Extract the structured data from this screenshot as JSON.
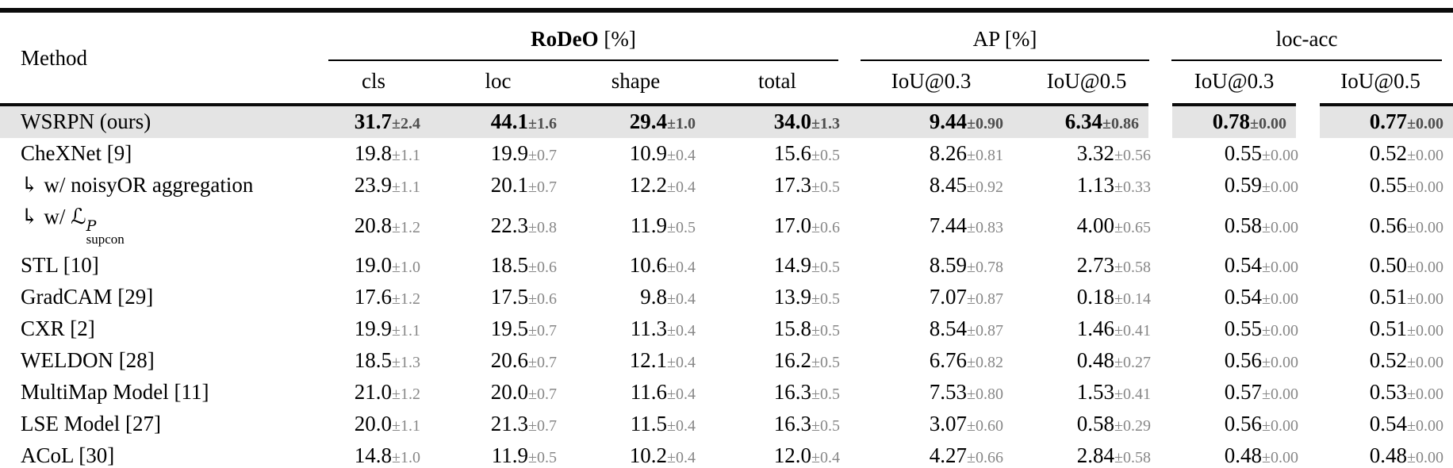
{
  "table": {
    "method_header": "Method",
    "groups": [
      {
        "label_bold": "RoDeO",
        "label_rest": " [%]"
      },
      {
        "label_bold": "",
        "label_rest": "AP [%]"
      },
      {
        "label_bold": "",
        "label_rest": "loc-acc"
      }
    ],
    "subheaders": [
      "cls",
      "loc",
      "shape",
      "total",
      "IoU@0.3",
      "IoU@0.5",
      "IoU@0.3",
      "IoU@0.5"
    ],
    "rows": [
      {
        "method": "WSRPN (ours)",
        "highlight": true,
        "values": [
          {
            "v": "31.7",
            "e": "±2.4"
          },
          {
            "v": "44.1",
            "e": "±1.6"
          },
          {
            "v": "29.4",
            "e": "±1.0"
          },
          {
            "v": "34.0",
            "e": "±1.3"
          },
          {
            "v": "9.44",
            "e": "±0.90"
          },
          {
            "v": "6.34",
            "e": "±0.86"
          },
          {
            "v": "0.78",
            "e": "±0.00"
          },
          {
            "v": "0.77",
            "e": "±0.00"
          }
        ]
      },
      {
        "method": "CheXNet [9]",
        "highlight": false,
        "values": [
          {
            "v": "19.8",
            "e": "±1.1"
          },
          {
            "v": "19.9",
            "e": "±0.7"
          },
          {
            "v": "10.9",
            "e": "±0.4"
          },
          {
            "v": "15.6",
            "e": "±0.5"
          },
          {
            "v": "8.26",
            "e": "±0.81"
          },
          {
            "v": "3.32",
            "e": "±0.56"
          },
          {
            "v": "0.55",
            "e": "±0.00"
          },
          {
            "v": "0.52",
            "e": "±0.00"
          }
        ]
      },
      {
        "method": "↳ w/ noisyOR aggregation",
        "highlight": false,
        "values": [
          {
            "v": "23.9",
            "e": "±1.1"
          },
          {
            "v": "20.1",
            "e": "±0.7"
          },
          {
            "v": "12.2",
            "e": "±0.4"
          },
          {
            "v": "17.3",
            "e": "±0.5"
          },
          {
            "v": "8.45",
            "e": "±0.92"
          },
          {
            "v": "1.13",
            "e": "±0.33"
          },
          {
            "v": "0.59",
            "e": "±0.00"
          },
          {
            "v": "0.55",
            "e": "±0.00"
          }
        ]
      },
      {
        "method": "↳ w/ ℒ^P_supcon",
        "method_math": {
          "prefix": "↳ w/ ",
          "symbol": "ℒ",
          "sup": "P",
          "sub": "supcon"
        },
        "highlight": false,
        "values": [
          {
            "v": "20.8",
            "e": "±1.2"
          },
          {
            "v": "22.3",
            "e": "±0.8"
          },
          {
            "v": "11.9",
            "e": "±0.5"
          },
          {
            "v": "17.0",
            "e": "±0.6"
          },
          {
            "v": "7.44",
            "e": "±0.83"
          },
          {
            "v": "4.00",
            "e": "±0.65"
          },
          {
            "v": "0.58",
            "e": "±0.00"
          },
          {
            "v": "0.56",
            "e": "±0.00"
          }
        ]
      },
      {
        "method": "STL [10]",
        "highlight": false,
        "values": [
          {
            "v": "19.0",
            "e": "±1.0"
          },
          {
            "v": "18.5",
            "e": "±0.6"
          },
          {
            "v": "10.6",
            "e": "±0.4"
          },
          {
            "v": "14.9",
            "e": "±0.5"
          },
          {
            "v": "8.59",
            "e": "±0.78"
          },
          {
            "v": "2.73",
            "e": "±0.58"
          },
          {
            "v": "0.54",
            "e": "±0.00"
          },
          {
            "v": "0.50",
            "e": "±0.00"
          }
        ]
      },
      {
        "method": "GradCAM [29]",
        "highlight": false,
        "values": [
          {
            "v": "17.6",
            "e": "±1.2"
          },
          {
            "v": "17.5",
            "e": "±0.6"
          },
          {
            "v": "9.8",
            "e": "±0.4"
          },
          {
            "v": "13.9",
            "e": "±0.5"
          },
          {
            "v": "7.07",
            "e": "±0.87"
          },
          {
            "v": "0.18",
            "e": "±0.14"
          },
          {
            "v": "0.54",
            "e": "±0.00"
          },
          {
            "v": "0.51",
            "e": "±0.00"
          }
        ]
      },
      {
        "method": "CXR [2]",
        "highlight": false,
        "values": [
          {
            "v": "19.9",
            "e": "±1.1"
          },
          {
            "v": "19.5",
            "e": "±0.7"
          },
          {
            "v": "11.3",
            "e": "±0.4"
          },
          {
            "v": "15.8",
            "e": "±0.5"
          },
          {
            "v": "8.54",
            "e": "±0.87"
          },
          {
            "v": "1.46",
            "e": "±0.41"
          },
          {
            "v": "0.55",
            "e": "±0.00"
          },
          {
            "v": "0.51",
            "e": "±0.00"
          }
        ]
      },
      {
        "method": "WELDON [28]",
        "highlight": false,
        "values": [
          {
            "v": "18.5",
            "e": "±1.3"
          },
          {
            "v": "20.6",
            "e": "±0.7"
          },
          {
            "v": "12.1",
            "e": "±0.4"
          },
          {
            "v": "16.2",
            "e": "±0.5"
          },
          {
            "v": "6.76",
            "e": "±0.82"
          },
          {
            "v": "0.48",
            "e": "±0.27"
          },
          {
            "v": "0.56",
            "e": "±0.00"
          },
          {
            "v": "0.52",
            "e": "±0.00"
          }
        ]
      },
      {
        "method": "MultiMap Model [11]",
        "highlight": false,
        "values": [
          {
            "v": "21.0",
            "e": "±1.2"
          },
          {
            "v": "20.0",
            "e": "±0.7"
          },
          {
            "v": "11.6",
            "e": "±0.4"
          },
          {
            "v": "16.3",
            "e": "±0.5"
          },
          {
            "v": "7.53",
            "e": "±0.80"
          },
          {
            "v": "1.53",
            "e": "±0.41"
          },
          {
            "v": "0.57",
            "e": "±0.00"
          },
          {
            "v": "0.53",
            "e": "±0.00"
          }
        ]
      },
      {
        "method": "LSE Model [27]",
        "highlight": false,
        "values": [
          {
            "v": "20.0",
            "e": "±1.1"
          },
          {
            "v": "21.3",
            "e": "±0.7"
          },
          {
            "v": "11.5",
            "e": "±0.4"
          },
          {
            "v": "16.3",
            "e": "±0.5"
          },
          {
            "v": "3.07",
            "e": "±0.60"
          },
          {
            "v": "0.58",
            "e": "±0.29"
          },
          {
            "v": "0.56",
            "e": "±0.00"
          },
          {
            "v": "0.54",
            "e": "±0.00"
          }
        ]
      },
      {
        "method": "ACoL [30]",
        "highlight": false,
        "values": [
          {
            "v": "14.8",
            "e": "±1.0"
          },
          {
            "v": "11.9",
            "e": "±0.5"
          },
          {
            "v": "10.2",
            "e": "±0.4"
          },
          {
            "v": "12.0",
            "e": "±0.4"
          },
          {
            "v": "4.27",
            "e": "±0.66"
          },
          {
            "v": "2.84",
            "e": "±0.58"
          },
          {
            "v": "0.48",
            "e": "±0.00"
          },
          {
            "v": "0.48",
            "e": "±0.00"
          }
        ]
      }
    ]
  }
}
